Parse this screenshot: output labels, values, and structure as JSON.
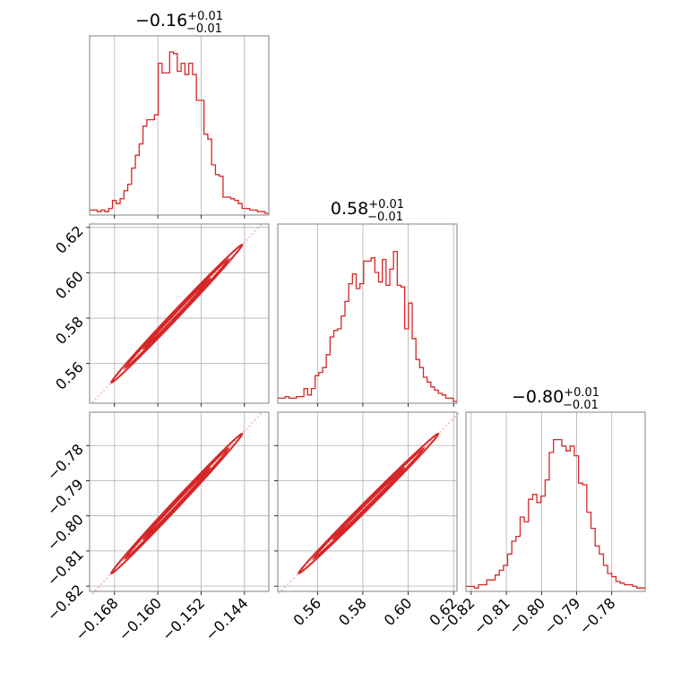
{
  "chart_data": {
    "type": "corner",
    "color": "#d62728",
    "parameters": [
      {
        "index": 0,
        "median": "−0.16",
        "err_plus": "+0.01",
        "err_minus": "−0.01",
        "range": [
          -0.1726,
          -0.1395
        ],
        "ticks": [
          -0.168,
          -0.16,
          -0.152,
          -0.144
        ],
        "tick_labels": [
          "−0.168",
          "−0.160",
          "−0.152",
          "−0.144"
        ]
      },
      {
        "index": 1,
        "median": "0.58",
        "err_plus": "+0.01",
        "err_minus": "−0.01",
        "range": [
          0.5425,
          0.6215
        ],
        "ticks": [
          0.56,
          0.58,
          0.6,
          0.62
        ],
        "tick_labels": [
          "0.56",
          "0.58",
          "0.60",
          "0.62"
        ]
      },
      {
        "index": 2,
        "median": "−0.80",
        "err_plus": "+0.01",
        "err_minus": "−0.01",
        "range": [
          -0.8215,
          -0.7705
        ],
        "ticks": [
          -0.82,
          -0.81,
          -0.8,
          -0.79,
          -0.78
        ],
        "tick_labels": [
          "−0.82",
          "−0.81",
          "−0.80",
          "−0.79",
          "−0.78"
        ]
      }
    ],
    "histograms": [
      [
        0.02,
        0.02,
        0.01,
        0.02,
        0.01,
        0.03,
        0.08,
        0.06,
        0.09,
        0.14,
        0.18,
        0.28,
        0.36,
        0.43,
        0.54,
        0.58,
        0.58,
        0.61,
        0.93,
        0.87,
        0.87,
        1.0,
        0.99,
        0.88,
        0.93,
        0.86,
        0.93,
        0.86,
        0.7,
        0.7,
        0.49,
        0.46,
        0.3,
        0.24,
        0.23,
        0.1,
        0.1,
        0.09,
        0.08,
        0.06,
        0.03,
        0.03,
        0.02,
        0.02,
        0.01,
        0.01,
        0.0
      ],
      [
        0.02,
        0.02,
        0.03,
        0.02,
        0.02,
        0.03,
        0.03,
        0.08,
        0.04,
        0.08,
        0.16,
        0.18,
        0.21,
        0.29,
        0.4,
        0.44,
        0.45,
        0.53,
        0.62,
        0.73,
        0.79,
        0.7,
        0.73,
        0.87,
        0.87,
        0.89,
        0.8,
        0.74,
        0.88,
        0.72,
        0.82,
        0.93,
        0.72,
        0.71,
        0.45,
        0.61,
        0.39,
        0.26,
        0.21,
        0.15,
        0.12,
        0.09,
        0.07,
        0.05,
        0.04,
        0.02,
        0.02,
        0.0
      ],
      [
        0.02,
        0.02,
        0.01,
        0.03,
        0.03,
        0.06,
        0.06,
        0.09,
        0.12,
        0.15,
        0.22,
        0.3,
        0.33,
        0.45,
        0.42,
        0.56,
        0.59,
        0.54,
        0.58,
        0.68,
        0.85,
        0.93,
        0.93,
        0.89,
        0.86,
        0.89,
        0.83,
        0.66,
        0.65,
        0.48,
        0.38,
        0.27,
        0.22,
        0.15,
        0.1,
        0.08,
        0.05,
        0.04,
        0.03,
        0.03,
        0.02,
        0.01,
        0.01
      ]
    ],
    "correlations": [
      {
        "x": 0,
        "y": 1,
        "from": [
          -0.172,
          0.543
        ],
        "to": [
          -0.141,
          0.621
        ]
      },
      {
        "x": 0,
        "y": 2,
        "from": [
          -0.172,
          -0.822
        ],
        "to": [
          -0.141,
          -0.771
        ]
      },
      {
        "x": 1,
        "y": 2,
        "from": [
          0.543,
          -0.822
        ],
        "to": [
          0.622,
          -0.771
        ]
      }
    ]
  }
}
